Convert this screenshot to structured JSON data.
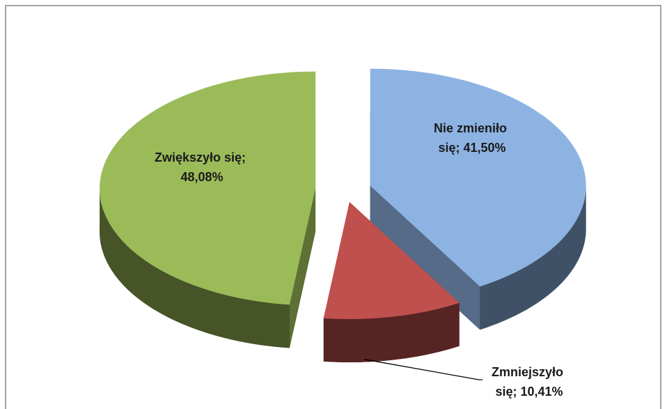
{
  "chart_data": {
    "type": "pie",
    "values": [
      41.5,
      10.41,
      48.08
    ],
    "value_labels": [
      "Nie zmieniło się; 41,50%",
      "Zmniejszyło się; 10,41%",
      "Zwiększyło się; 48,08%"
    ],
    "colors": [
      "#8db3e2",
      "#c0504d",
      "#9bbb59"
    ],
    "explode": true
  }
}
